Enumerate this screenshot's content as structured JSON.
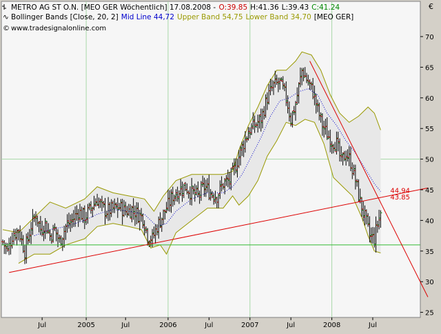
{
  "header": {
    "line1": {
      "name": "METRO AG ST O.N. [MEO GER  Wöchentlich] 17.08.2008 -",
      "open": "O:39.85",
      "high": "H:41.36",
      "low": "L:39.43",
      "close": "C:41.24"
    },
    "line2": {
      "icon": "bollinger-icon",
      "name": "Bollinger Bands [Close, 20, 2]",
      "mid": "Mid Line 44,72",
      "upper": "Upper Band 54,75",
      "lower": "Lower Band 34,70",
      "suffix": "[MEO GER]"
    },
    "line3": {
      "icon": "copyright-icon",
      "text": "www.tradesignalonline.com"
    },
    "currency": "€"
  },
  "colors": {
    "background": "#d4d0c8",
    "plot_bg": "#f6f6f6",
    "grid": "#a8d8a8",
    "price": "#000000",
    "bands": "#999900",
    "band_fill": "#e8e8e8",
    "midline": "#0000cc",
    "trendlines": "#dd0000",
    "support": "#33bb33",
    "open_color": "#cc0000",
    "close_color": "#008800",
    "ohlc_label": "#000000"
  },
  "chart_data": {
    "type": "ohlc",
    "x_unit": "weeks, 2004 – 2008",
    "ylim": [
      24,
      72
    ],
    "y_ticks": [
      25,
      30,
      35,
      40,
      45,
      50,
      55,
      60,
      65,
      70
    ],
    "x_ticks": [
      {
        "week": 25,
        "label": "Jul"
      },
      {
        "week": 53,
        "label": "2005"
      },
      {
        "week": 78,
        "label": "Jul"
      },
      {
        "week": 105,
        "label": "2006"
      },
      {
        "week": 131,
        "label": "Jul"
      },
      {
        "week": 157,
        "label": "2007"
      },
      {
        "week": 183,
        "label": "Jul"
      },
      {
        "week": 209,
        "label": "2008"
      },
      {
        "week": 235,
        "label": "Jul"
      }
    ],
    "vertical_grid_weeks": [
      53,
      105,
      157,
      209
    ],
    "horizontal_grid_values": [
      50
    ],
    "x_range": [
      0,
      270
    ],
    "price_anchors": [
      [
        0,
        36.5
      ],
      [
        3,
        35
      ],
      [
        6,
        37.5
      ],
      [
        10,
        38.5
      ],
      [
        14,
        35
      ],
      [
        18,
        39
      ],
      [
        21,
        41
      ],
      [
        24,
        38.5
      ],
      [
        27,
        39.5
      ],
      [
        30,
        37.5
      ],
      [
        33,
        38.5
      ],
      [
        36,
        36.5
      ],
      [
        40,
        39
      ],
      [
        44,
        40
      ],
      [
        48,
        41.5
      ],
      [
        52,
        40.5
      ],
      [
        56,
        42
      ],
      [
        60,
        43.5
      ],
      [
        63,
        42
      ],
      [
        66,
        41.5
      ],
      [
        70,
        41.8
      ],
      [
        74,
        42.2
      ],
      [
        78,
        41.5
      ],
      [
        82,
        41.8
      ],
      [
        86,
        41
      ],
      [
        89,
        40.5
      ],
      [
        92,
        37.5
      ],
      [
        95,
        37
      ],
      [
        98,
        39
      ],
      [
        101,
        40.5
      ],
      [
        104,
        42
      ],
      [
        108,
        44
      ],
      [
        112,
        45
      ],
      [
        116,
        45.5
      ],
      [
        120,
        44.5
      ],
      [
        124,
        44
      ],
      [
        128,
        45.5
      ],
      [
        132,
        44.5
      ],
      [
        136,
        44
      ],
      [
        140,
        46
      ],
      [
        144,
        46.5
      ],
      [
        148,
        49
      ],
      [
        152,
        52
      ],
      [
        156,
        54.5
      ],
      [
        160,
        55.5
      ],
      [
        164,
        56.5
      ],
      [
        168,
        60
      ],
      [
        172,
        62
      ],
      [
        176,
        62.5
      ],
      [
        180,
        60
      ],
      [
        183,
        56.5
      ],
      [
        186,
        59
      ],
      [
        190,
        64.5
      ],
      [
        193,
        63
      ],
      [
        197,
        61
      ],
      [
        200,
        58
      ],
      [
        203,
        55.5
      ],
      [
        206,
        54
      ],
      [
        209,
        53
      ],
      [
        212,
        52.5
      ],
      [
        215,
        49.5
      ],
      [
        218,
        51
      ],
      [
        221,
        49.5
      ],
      [
        224,
        46.5
      ],
      [
        227,
        43
      ],
      [
        230,
        40.5
      ],
      [
        233,
        37.5
      ],
      [
        236,
        37
      ],
      [
        238,
        39.5
      ],
      [
        240,
        41.24
      ]
    ],
    "bollinger": {
      "upper_anchors": [
        [
          0,
          38.5
        ],
        [
          10,
          38
        ],
        [
          20,
          40.5
        ],
        [
          30,
          43
        ],
        [
          40,
          42
        ],
        [
          52,
          43.5
        ],
        [
          60,
          45.5
        ],
        [
          70,
          44.5
        ],
        [
          80,
          44
        ],
        [
          90,
          43.5
        ],
        [
          96,
          41.5
        ],
        [
          102,
          44
        ],
        [
          110,
          46.5
        ],
        [
          120,
          47.5
        ],
        [
          130,
          47.5
        ],
        [
          140,
          47.5
        ],
        [
          146,
          48
        ],
        [
          150,
          51.5
        ],
        [
          156,
          55.5
        ],
        [
          162,
          58.5
        ],
        [
          168,
          62
        ],
        [
          174,
          64.5
        ],
        [
          180,
          64.5
        ],
        [
          186,
          66
        ],
        [
          190,
          67.5
        ],
        [
          196,
          67
        ],
        [
          202,
          64.5
        ],
        [
          208,
          60.5
        ],
        [
          214,
          57.5
        ],
        [
          220,
          56
        ],
        [
          226,
          57
        ],
        [
          232,
          58.5
        ],
        [
          236,
          57.5
        ],
        [
          240,
          54.75
        ]
      ],
      "lower_anchors": [
        [
          10,
          33
        ],
        [
          20,
          34.5
        ],
        [
          30,
          34.5
        ],
        [
          40,
          36
        ],
        [
          52,
          37
        ],
        [
          60,
          39
        ],
        [
          70,
          39.5
        ],
        [
          80,
          39
        ],
        [
          88,
          38.5
        ],
        [
          94,
          35.5
        ],
        [
          100,
          36
        ],
        [
          104,
          34.5
        ],
        [
          110,
          38
        ],
        [
          120,
          40
        ],
        [
          130,
          42
        ],
        [
          140,
          42
        ],
        [
          146,
          44
        ],
        [
          150,
          42.5
        ],
        [
          156,
          44
        ],
        [
          162,
          46.5
        ],
        [
          168,
          50.5
        ],
        [
          174,
          53
        ],
        [
          180,
          56
        ],
        [
          186,
          55.5
        ],
        [
          192,
          56.5
        ],
        [
          198,
          56
        ],
        [
          204,
          52.5
        ],
        [
          210,
          47
        ],
        [
          216,
          45.5
        ],
        [
          222,
          44
        ],
        [
          228,
          40.5
        ],
        [
          232,
          37.5
        ],
        [
          236,
          35
        ],
        [
          240,
          34.7
        ]
      ],
      "mid_anchors": [
        [
          20,
          37.5
        ],
        [
          30,
          38.5
        ],
        [
          40,
          39
        ],
        [
          52,
          40
        ],
        [
          60,
          41
        ],
        [
          70,
          41.8
        ],
        [
          80,
          41.5
        ],
        [
          90,
          41
        ],
        [
          98,
          39
        ],
        [
          104,
          39.5
        ],
        [
          110,
          41.5
        ],
        [
          120,
          43.5
        ],
        [
          130,
          44.5
        ],
        [
          140,
          44.5
        ],
        [
          146,
          45.5
        ],
        [
          152,
          47.5
        ],
        [
          158,
          50.5
        ],
        [
          164,
          53.5
        ],
        [
          170,
          57
        ],
        [
          176,
          59.5
        ],
        [
          182,
          60
        ],
        [
          188,
          61
        ],
        [
          194,
          61.5
        ],
        [
          200,
          60.5
        ],
        [
          206,
          57.5
        ],
        [
          212,
          55.5
        ],
        [
          218,
          53
        ],
        [
          224,
          51
        ],
        [
          230,
          48.5
        ],
        [
          236,
          46
        ],
        [
          240,
          44.72
        ]
      ]
    },
    "trendlines": [
      {
        "from": [
          4,
          31.5
        ],
        "to": [
          270,
          45.3
        ]
      },
      {
        "from": [
          195,
          66
        ],
        "to": [
          270,
          27.5
        ]
      }
    ],
    "support_line": {
      "value": 36
    },
    "labels": [
      {
        "text": "44.94",
        "week": 240,
        "value": 44.94
      },
      {
        "text": "43.85",
        "week": 240,
        "value": 43.85
      }
    ]
  }
}
